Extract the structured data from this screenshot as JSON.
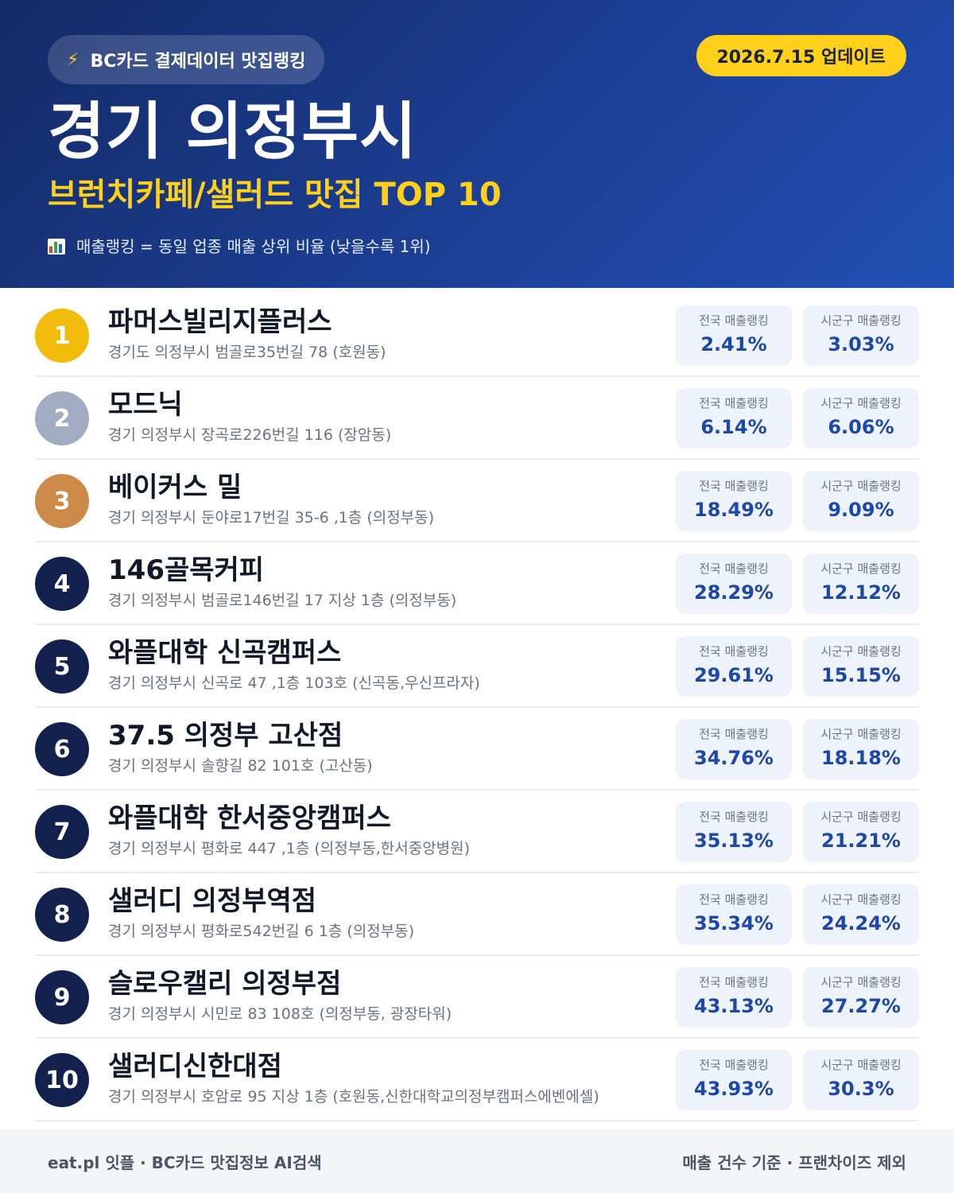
{
  "header": {
    "badge_label": "BC카드 결제데이터 맛집랭킹",
    "badge_icon": "lightning-icon",
    "update_label": "2026.7.15 업데이트",
    "title": "경기 의정부시",
    "subtitle": "브런치카페/샐러드 맛집 TOP 10",
    "note": "매출랭킹 = 동일 업종 매출 상위 비율 (낮을수록 1위)",
    "note_icon": "bar-chart-icon"
  },
  "labels": {
    "national": "전국 매출랭킹",
    "local": "시군구 매출랭킹"
  },
  "colors": {
    "header_bg": "#1c3f95",
    "accent_yellow": "#ffd11a",
    "gold": "#f3bb0b",
    "silver": "#a1abc1",
    "bronze": "#cc8947",
    "rank_default": "#13214f",
    "value_blue": "#1d47a8"
  },
  "items": [
    {
      "rank": "1",
      "name": "파머스빌리지플러스",
      "address": "경기도 의정부시 범골로35번길 78 (호원동)",
      "national": "2.41%",
      "local": "3.03%"
    },
    {
      "rank": "2",
      "name": "모드닉",
      "address": "경기 의정부시 장곡로226번길 116 (장암동)",
      "national": "6.14%",
      "local": "6.06%"
    },
    {
      "rank": "3",
      "name": "베이커스 밀",
      "address": "경기 의정부시 둔야로17번길 35-6 ,1층 (의정부동)",
      "national": "18.49%",
      "local": "9.09%"
    },
    {
      "rank": "4",
      "name": "146골목커피",
      "address": "경기 의정부시 범골로146번길 17 지상 1층 (의정부동)",
      "national": "28.29%",
      "local": "12.12%"
    },
    {
      "rank": "5",
      "name": "와플대학 신곡캠퍼스",
      "address": "경기 의정부시 신곡로 47 ,1층 103호 (신곡동,우신프라자)",
      "national": "29.61%",
      "local": "15.15%"
    },
    {
      "rank": "6",
      "name": "37.5 의정부 고산점",
      "address": "경기 의정부시 솔향길 82 101호 (고산동)",
      "national": "34.76%",
      "local": "18.18%"
    },
    {
      "rank": "7",
      "name": "와플대학 한서중앙캠퍼스",
      "address": "경기 의정부시 평화로 447 ,1층 (의정부동,한서중앙병원)",
      "national": "35.13%",
      "local": "21.21%"
    },
    {
      "rank": "8",
      "name": "샐러디 의정부역점",
      "address": "경기 의정부시 평화로542번길 6 1층 (의정부동)",
      "national": "35.34%",
      "local": "24.24%"
    },
    {
      "rank": "9",
      "name": "슬로우캘리 의정부점",
      "address": "경기 의정부시 시민로 83 108호 (의정부동, 광장타워)",
      "national": "43.13%",
      "local": "27.27%"
    },
    {
      "rank": "10",
      "name": "샐러디신한대점",
      "address": "경기 의정부시 호암로 95 지상 1층 (호원동,신한대학교의정부캠퍼스에벤에셀)",
      "national": "43.93%",
      "local": "30.3%"
    }
  ],
  "footer": {
    "left": "eat.pl 잇플 · BC카드 맛집정보 AI검색",
    "right": "매출 건수 기준 · 프랜차이즈 제외"
  }
}
